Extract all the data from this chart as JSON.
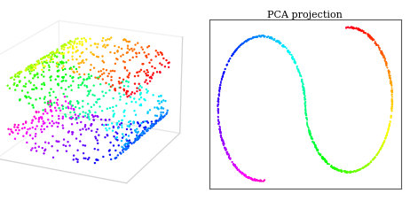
{
  "title_right": "PCA projection",
  "n_points": 1000,
  "seed": 0,
  "figsize": [
    4.71,
    2.28
  ],
  "dpi": 100,
  "background": "#ffffff",
  "title_fontsize": 8,
  "marker_size_3d": 3,
  "marker_size_2d": 2,
  "elev": 20,
  "azim": -65
}
